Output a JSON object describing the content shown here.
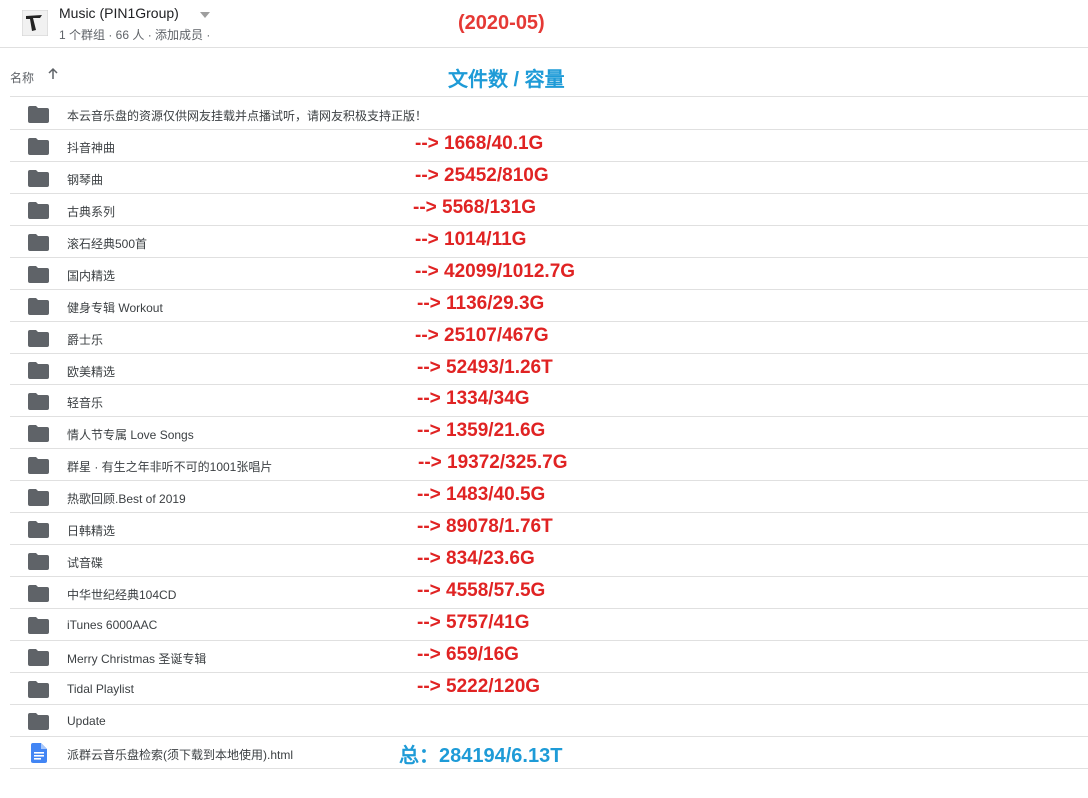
{
  "header": {
    "group_name": "Music (PIN1Group)",
    "meta_count": "1 个群组 · 66 人 · ",
    "add_members": "添加成员",
    "meta_tail": " ·",
    "date_label": "(2020-05)"
  },
  "columns": {
    "name_label": "名称",
    "sort_icon": "arrow-up-icon",
    "stats_title": "文件数 / 容量"
  },
  "colors": {
    "note_red": "#e02323",
    "note_blue": "#1e9bd7",
    "folder_gray": "#5f6368",
    "file_blue": "#4285f4"
  },
  "rows": [
    {
      "icon": "folder-icon",
      "name": "本云音乐盘的资源仅供网友挂载并点播试听，请网友积极支持正版！",
      "note": ""
    },
    {
      "icon": "folder-icon",
      "name": "抖音神曲",
      "note": "--> 1668/40.1G"
    },
    {
      "icon": "folder-icon",
      "name": "钢琴曲",
      "note": "--> 25452/810G"
    },
    {
      "icon": "folder-icon",
      "name": "古典系列",
      "note": "--> 5568/131G"
    },
    {
      "icon": "folder-icon",
      "name": "滚石经典500首",
      "note": "--> 1014/11G"
    },
    {
      "icon": "folder-icon",
      "name": "国内精选",
      "note": "--> 42099/1012.7G"
    },
    {
      "icon": "folder-icon",
      "name": "健身专辑 Workout",
      "note": "--> 1136/29.3G"
    },
    {
      "icon": "folder-icon",
      "name": "爵士乐",
      "note": "--> 25107/467G"
    },
    {
      "icon": "folder-icon",
      "name": "欧美精选",
      "note": "--> 52493/1.26T"
    },
    {
      "icon": "folder-icon",
      "name": "轻音乐",
      "note": "--> 1334/34G"
    },
    {
      "icon": "folder-icon",
      "name": "情人节专属 Love Songs",
      "note": "--> 1359/21.6G"
    },
    {
      "icon": "folder-icon",
      "name": "群星 · 有生之年非听不可的1001张唱片",
      "note": "--> 19372/325.7G"
    },
    {
      "icon": "folder-icon",
      "name": "热歌回顾.Best of 2019",
      "note": "--> 1483/40.5G"
    },
    {
      "icon": "folder-icon",
      "name": "日韩精选",
      "note": "--> 89078/1.76T"
    },
    {
      "icon": "folder-icon",
      "name": "试音碟",
      "note": "--> 834/23.6G"
    },
    {
      "icon": "folder-icon",
      "name": "中华世纪经典104CD",
      "note": "--> 4558/57.5G"
    },
    {
      "icon": "folder-icon",
      "name": "iTunes 6000AAC",
      "note": "--> 5757/41G"
    },
    {
      "icon": "folder-icon",
      "name": "Merry Christmas 圣诞专辑",
      "note": "--> 659/16G"
    },
    {
      "icon": "folder-icon",
      "name": "Tidal Playlist",
      "note": "--> 5222/120G"
    },
    {
      "icon": "folder-icon",
      "name": "Update",
      "note": ""
    },
    {
      "icon": "document-icon",
      "name": "派群云音乐盘检索(须下载到本地使用).html",
      "note": "总：284194/6.13T",
      "total": true
    }
  ]
}
